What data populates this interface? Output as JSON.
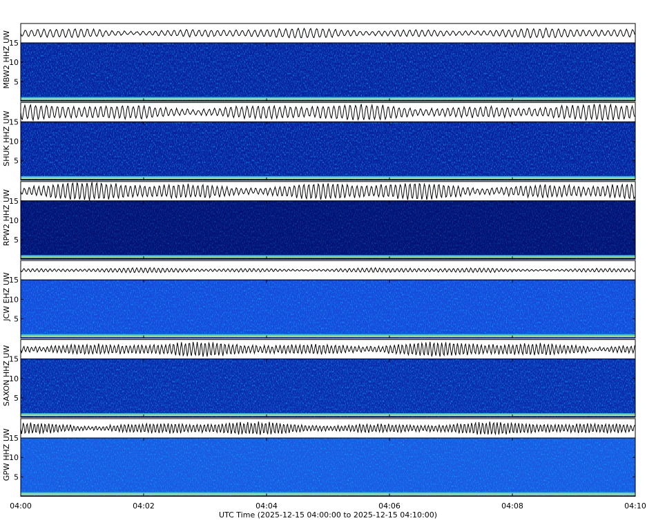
{
  "chart_data": {
    "type": "spectrogram",
    "panels": [
      {
        "label": "MBW2 HHZ UW",
        "ylim": [
          0,
          15
        ],
        "yticks": [
          5,
          10,
          15
        ]
      },
      {
        "label": "SHUK HHZ UW",
        "ylim": [
          0,
          15
        ],
        "yticks": [
          5,
          10,
          15
        ]
      },
      {
        "label": "RPW2 HHZ UW",
        "ylim": [
          0,
          15
        ],
        "yticks": [
          5,
          10,
          15
        ]
      },
      {
        "label": "JCW EHZ UW",
        "ylim": [
          0,
          15
        ],
        "yticks": [
          5,
          10,
          15
        ]
      },
      {
        "label": "SAXON HHZ UW",
        "ylim": [
          0,
          15
        ],
        "yticks": [
          5,
          10,
          15
        ]
      },
      {
        "label": "GPW HHZ UW",
        "ylim": [
          0,
          15
        ],
        "yticks": [
          5,
          10,
          15
        ]
      }
    ],
    "xticks": [
      "04:00",
      "04:02",
      "04:04",
      "04:06",
      "04:08",
      "04:10"
    ],
    "xlabel": "UTC Time (2025-12-15 04:00:00 to 2025-12-15 04:10:00)"
  }
}
